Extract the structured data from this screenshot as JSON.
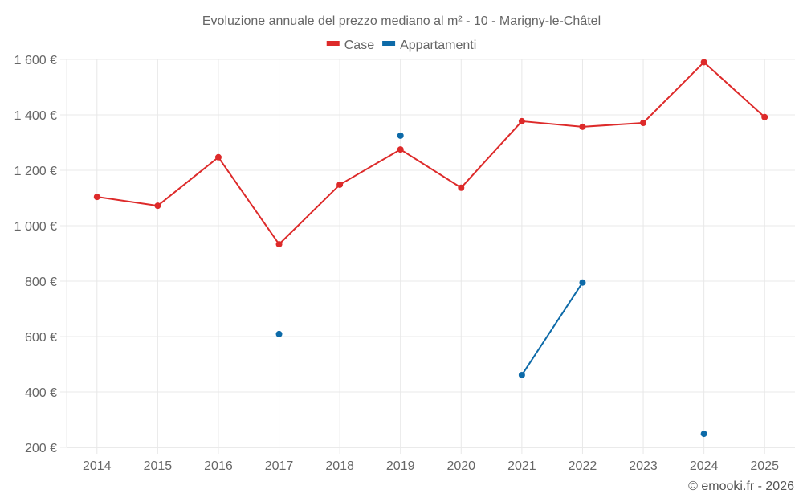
{
  "chart_data": {
    "type": "line",
    "title": "Evoluzione annuale del prezzo mediano al m² - 10 - Marigny-le-Châtel",
    "xlabel": "",
    "ylabel": "",
    "x": [
      "2014",
      "2015",
      "2016",
      "2017",
      "2018",
      "2019",
      "2020",
      "2021",
      "2022",
      "2023",
      "2024",
      "2025"
    ],
    "ylim": [
      200,
      1600
    ],
    "yticks": [
      200,
      400,
      600,
      800,
      1000,
      1200,
      1400,
      1600
    ],
    "ytick_labels": [
      "200 €",
      "400 €",
      "600 €",
      "800 €",
      "1 000 €",
      "1 200 €",
      "1 400 €",
      "1 600 €"
    ],
    "grid": true,
    "legend_position": "top-center",
    "series": [
      {
        "name": "Case",
        "color": "#dd2a2a",
        "values": [
          1104,
          1072,
          1247,
          933,
          1148,
          1275,
          1137,
          1377,
          1357,
          1371,
          1590,
          1392
        ]
      },
      {
        "name": "Appartamenti",
        "color": "#0d6aa8",
        "values": [
          null,
          null,
          null,
          609,
          null,
          1325,
          null,
          461,
          795,
          null,
          249,
          null
        ]
      }
    ],
    "credit": "© emooki.fr - 2026"
  }
}
